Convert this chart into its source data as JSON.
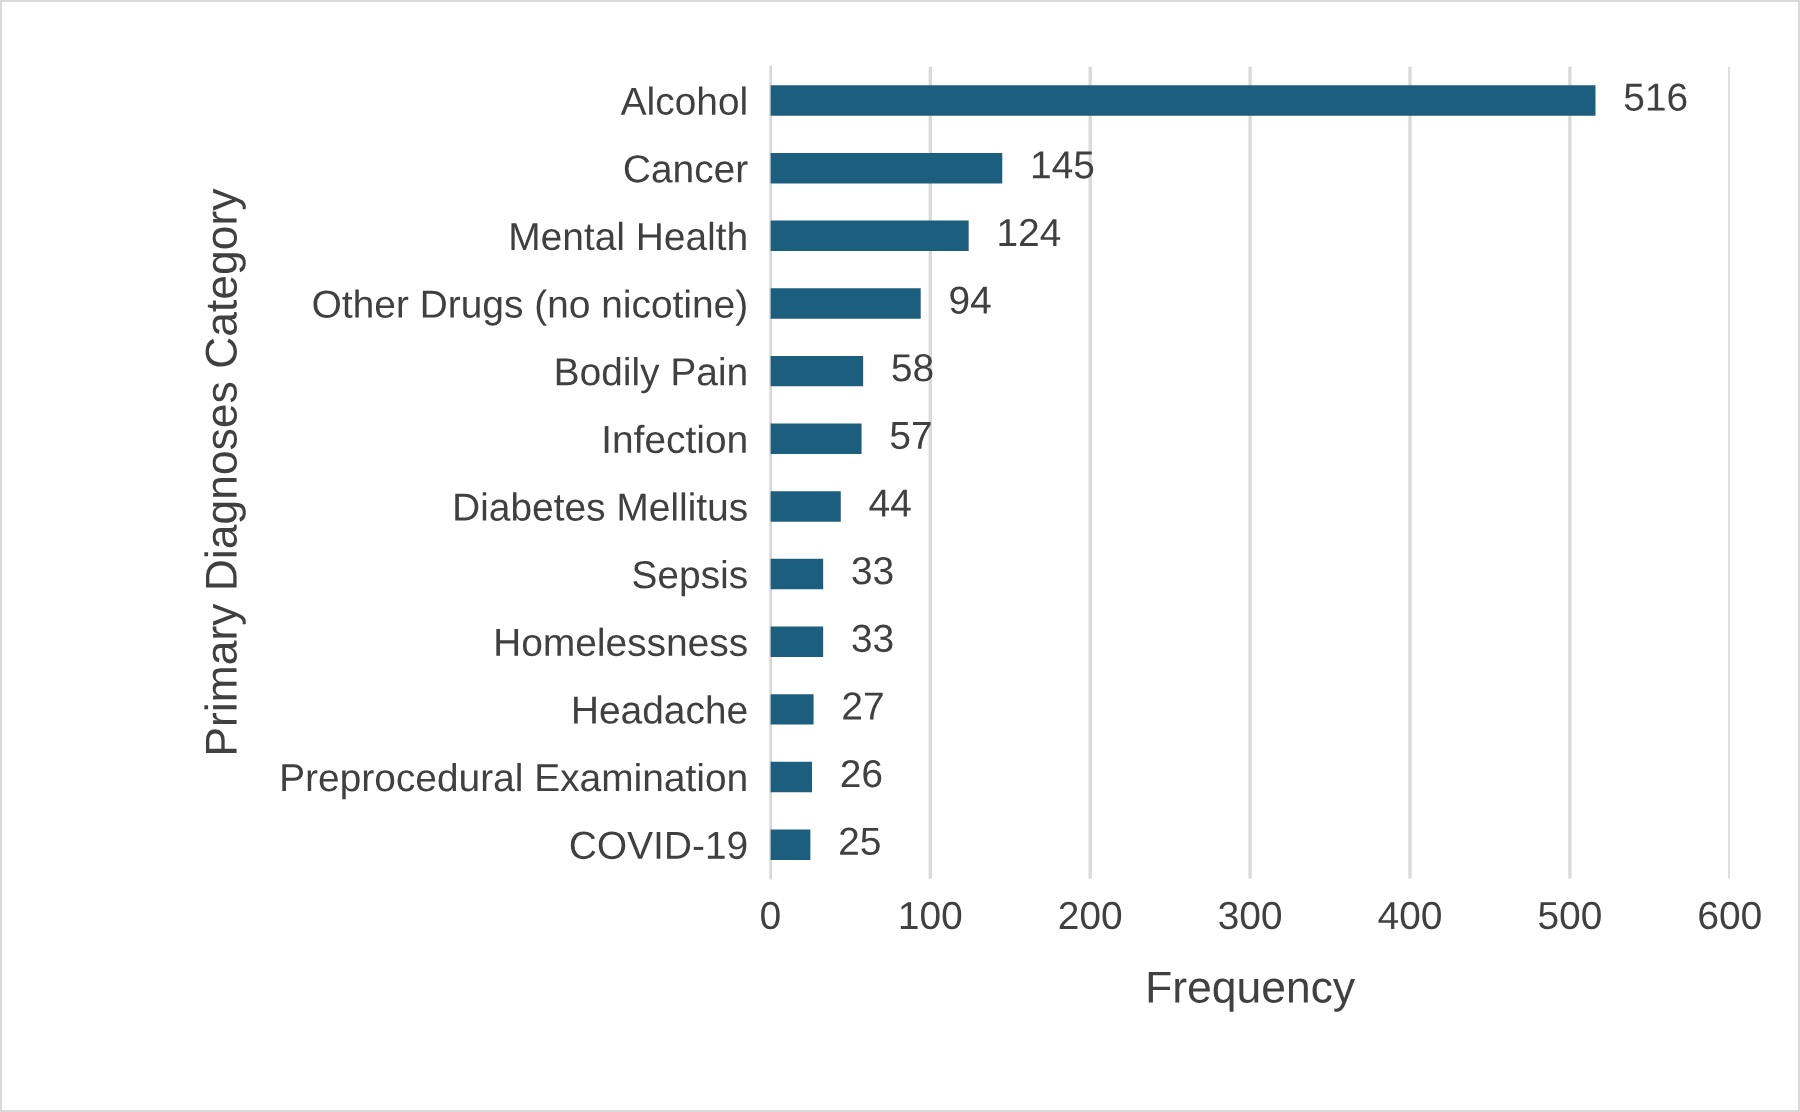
{
  "chart_data": {
    "type": "bar",
    "orientation": "horizontal",
    "xlabel": "Frequency",
    "ylabel": "Primary Diagnoses Category",
    "categories": [
      "Alcohol",
      "Cancer",
      "Mental Health",
      "Other Drugs (no nicotine)",
      "Bodily Pain",
      "Infection",
      "Diabetes Mellitus",
      "Sepsis",
      "Homelessness",
      "Headache",
      "Preprocedural Examination",
      "COVID-19"
    ],
    "values": [
      516,
      145,
      124,
      94,
      58,
      57,
      44,
      33,
      33,
      27,
      26,
      25
    ],
    "color": "#1b5e7e",
    "xlim": [
      0,
      600
    ],
    "xticks": [
      0,
      100,
      200,
      300,
      400,
      500,
      600
    ],
    "grid": "x",
    "data_labels": true
  }
}
